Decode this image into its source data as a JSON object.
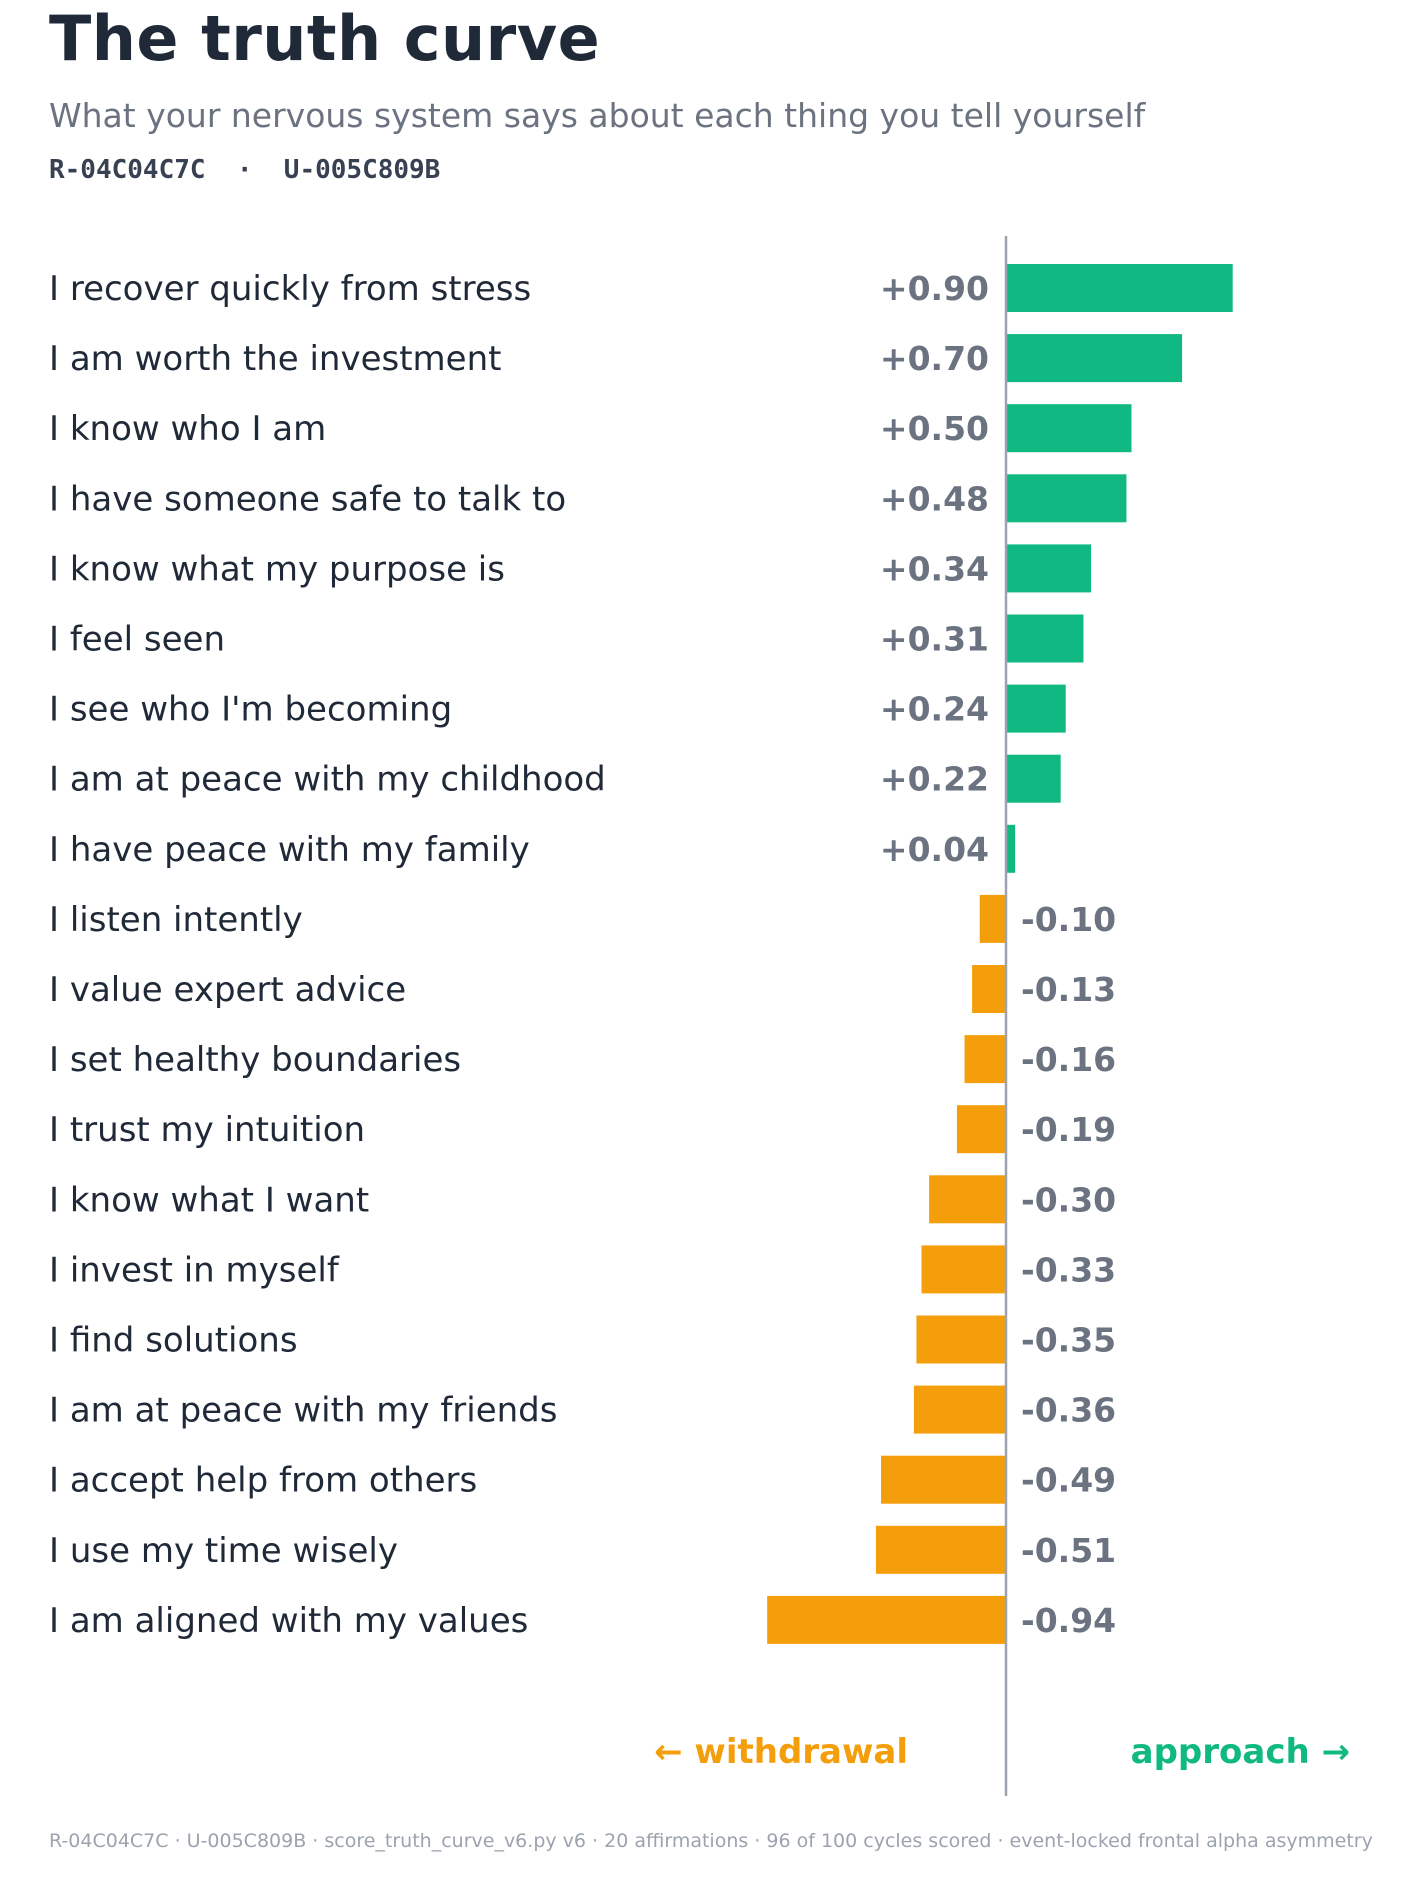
{
  "header": {
    "title": "The truth curve",
    "subtitle": "What your nervous system says about each thing you tell yourself",
    "ids": "R-04C04C7C  ·  U-005C809B"
  },
  "colors": {
    "positive": "#10b981",
    "negative": "#f59e0b",
    "axis": "#9ca3af",
    "label": "#1f2937",
    "value": "#6b7280"
  },
  "chart_data": {
    "type": "bar",
    "orientation": "horizontal",
    "categories": [
      "I recover quickly from stress",
      "I am worth the investment",
      "I know who I am",
      "I have someone safe to talk to",
      "I know what my purpose is",
      "I feel seen",
      "I see who I'm becoming",
      "I am at peace with my childhood",
      "I have peace with my family",
      "I listen intently",
      "I value expert advice",
      "I set healthy boundaries",
      "I trust my intuition",
      "I know what I want",
      "I invest in myself",
      "I find solutions",
      "I am at peace with my friends",
      "I accept help from others",
      "I use my time wisely",
      "I am aligned with my values"
    ],
    "values": [
      0.9,
      0.7,
      0.5,
      0.48,
      0.34,
      0.31,
      0.24,
      0.22,
      0.04,
      -0.1,
      -0.13,
      -0.16,
      -0.19,
      -0.3,
      -0.33,
      -0.35,
      -0.36,
      -0.49,
      -0.51,
      -0.94
    ],
    "value_labels": [
      "+0.90",
      "+0.70",
      "+0.50",
      "+0.48",
      "+0.34",
      "+0.31",
      "+0.24",
      "+0.22",
      "+0.04",
      "-0.10",
      "-0.13",
      "-0.16",
      "-0.19",
      "-0.30",
      "-0.33",
      "-0.35",
      "-0.36",
      "-0.49",
      "-0.51",
      "-0.94"
    ],
    "direction_labels": {
      "negative": "← withdrawal",
      "positive": "approach →"
    },
    "xlim": [
      -1,
      1
    ],
    "grid": false,
    "legend": false
  },
  "footer": {
    "text": "R-04C04C7C  ·  U-005C809B  ·  score_truth_curve_v6.py v6  ·  20 affirmations  ·  96 of 100 cycles scored  ·  event-locked frontal alpha asymmetry"
  }
}
